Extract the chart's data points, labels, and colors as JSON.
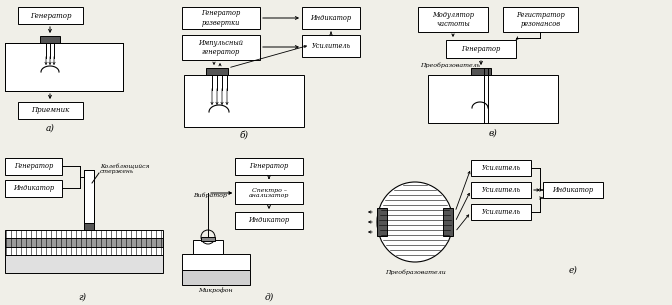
{
  "bg": "#f0efe8",
  "box_fc": "#ffffff",
  "box_ec": "#000000",
  "dark": "#333333",
  "fs": 5.0,
  "lfs": 6.5,
  "sections": {
    "a": {
      "label": "а)",
      "gen": [
        18,
        8,
        62,
        16
      ],
      "plate": [
        5,
        43,
        112,
        42
      ],
      "recv": [
        18,
        110,
        62,
        16
      ]
    },
    "b_label": "б)",
    "v_label": "в)",
    "g_label": "г)",
    "d_label": "д)",
    "e_label": "е)"
  }
}
